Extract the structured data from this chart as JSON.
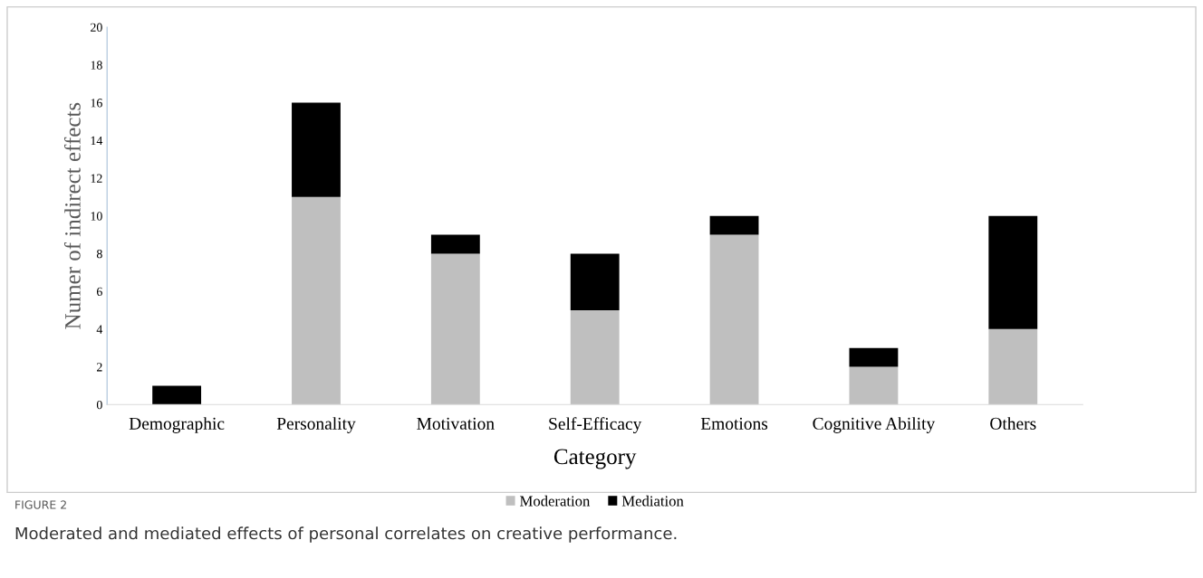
{
  "chart_data": {
    "type": "bar",
    "stacked": true,
    "xlabel": "Category",
    "ylabel": "Numer of indirect effects",
    "categories": [
      "Demographic",
      "Personality",
      "Motivation",
      "Self-Efficacy",
      "Emotions",
      "Cognitive Ability",
      "Others"
    ],
    "series": [
      {
        "name": "Moderation",
        "color": "#bfbfbf",
        "values": [
          0,
          11,
          8,
          5,
          9,
          2,
          4
        ]
      },
      {
        "name": "Mediation",
        "color": "#000000",
        "values": [
          1,
          5,
          1,
          3,
          1,
          1,
          6
        ]
      }
    ],
    "ylim": [
      0,
      20
    ],
    "yticks": [
      0,
      2,
      4,
      6,
      8,
      10,
      12,
      14,
      16,
      18,
      20
    ],
    "grid": false,
    "legend": "bottom",
    "annotations": [
      "FIGURE 2",
      "Moderated and mediated effects of personal correlates on creative performance."
    ]
  }
}
